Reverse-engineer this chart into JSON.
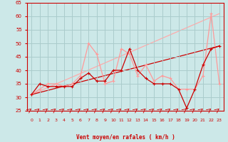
{
  "xlabel": "Vent moyen/en rafales ( km/h )",
  "bg_color": "#cce8e8",
  "grid_color": "#aacccc",
  "xlim": [
    -0.5,
    23.5
  ],
  "ylim": [
    25,
    65
  ],
  "yticks": [
    25,
    30,
    35,
    40,
    45,
    50,
    55,
    60,
    65
  ],
  "xticks": [
    0,
    1,
    2,
    3,
    4,
    5,
    6,
    7,
    8,
    9,
    10,
    11,
    12,
    13,
    14,
    15,
    16,
    17,
    18,
    19,
    20,
    21,
    22,
    23
  ],
  "x": [
    0,
    1,
    2,
    3,
    4,
    5,
    6,
    7,
    8,
    9,
    10,
    11,
    12,
    13,
    14,
    15,
    16,
    17,
    18,
    19,
    20,
    21,
    22,
    23
  ],
  "line1_y": [
    31,
    35,
    34,
    34,
    34,
    34,
    37,
    39,
    36,
    36,
    40,
    40,
    48,
    40,
    37,
    35,
    35,
    35,
    33,
    26,
    33,
    42,
    48,
    49
  ],
  "line2_y": [
    31,
    33,
    35,
    35,
    34,
    35,
    38,
    50,
    46,
    35,
    36,
    48,
    46,
    38,
    42,
    36,
    38,
    37,
    33,
    33,
    33,
    38,
    61,
    35
  ],
  "trend1_x": [
    0,
    23
  ],
  "trend1_y": [
    31,
    49
  ],
  "trend2_x": [
    0,
    23
  ],
  "trend2_y": [
    31,
    61
  ],
  "line1_color": "#cc0000",
  "line2_color": "#ff9999",
  "trend1_color": "#cc0000",
  "trend2_color": "#ffaaaa",
  "tick_color": "#cc0000",
  "xlabel_color": "#cc0000",
  "spine_color": "#cc0000"
}
